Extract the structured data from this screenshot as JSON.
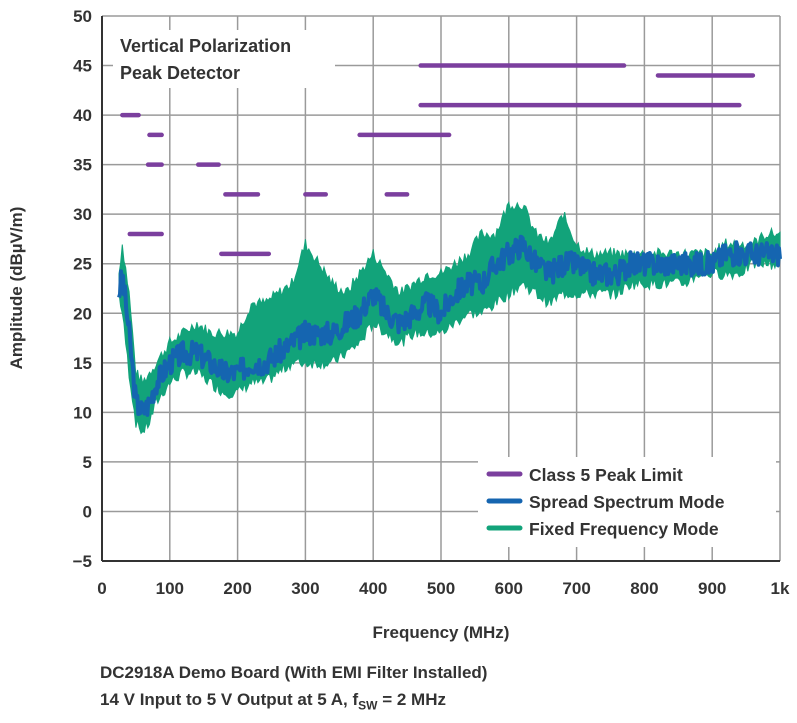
{
  "chart_data": {
    "type": "line",
    "xlabel": "Frequency (MHz)",
    "ylabel": "Amplitude (dBµV/m)",
    "xlim": [
      0,
      1000
    ],
    "ylim": [
      -5,
      50
    ],
    "x_ticks": [
      0,
      100,
      200,
      300,
      400,
      500,
      600,
      700,
      800,
      900,
      1000
    ],
    "x_tick_labels": [
      "0",
      "100",
      "200",
      "300",
      "400",
      "500",
      "600",
      "700",
      "800",
      "900",
      "1k"
    ],
    "y_ticks": [
      -5,
      0,
      5,
      10,
      15,
      20,
      25,
      30,
      35,
      40,
      45,
      50
    ],
    "y_tick_labels": [
      "−5",
      "0",
      "5",
      "10",
      "15",
      "20",
      "25",
      "30",
      "35",
      "40",
      "45",
      "50"
    ],
    "grid": true,
    "annotation": [
      "Vertical Polarization",
      "Peak Detector"
    ],
    "legend": {
      "placement": "bottom-right"
    },
    "series": [
      {
        "name": "Class 5 Peak Limit",
        "color": "#7b3f9e",
        "segments": [
          {
            "x": [
              30,
              54
            ],
            "y": 40
          },
          {
            "x": [
              41,
              88
            ],
            "y": 28
          },
          {
            "x": [
              70,
              88
            ],
            "y": 38
          },
          {
            "x": [
              68,
              88
            ],
            "y": 35
          },
          {
            "x": [
              142,
              172
            ],
            "y": 35
          },
          {
            "x": [
              176,
              246
            ],
            "y": 26
          },
          {
            "x": [
              182,
              230
            ],
            "y": 32
          },
          {
            "x": [
              300,
              330
            ],
            "y": 32
          },
          {
            "x": [
              380,
              512
            ],
            "y": 38
          },
          {
            "x": [
              420,
              450
            ],
            "y": 32
          },
          {
            "x": [
              470,
              770
            ],
            "y": 45
          },
          {
            "x": [
              470,
              940
            ],
            "y": 41
          },
          {
            "x": [
              820,
              960
            ],
            "y": 44
          }
        ]
      },
      {
        "name": "Spread Spectrum Mode",
        "color": "#1565b0",
        "x": [
          25,
          30,
          40,
          50,
          60,
          70,
          80,
          100,
          120,
          140,
          160,
          180,
          200,
          220,
          240,
          260,
          280,
          300,
          320,
          340,
          360,
          380,
          400,
          420,
          440,
          460,
          480,
          500,
          520,
          540,
          560,
          580,
          600,
          620,
          640,
          660,
          680,
          700,
          720,
          740,
          760,
          780,
          800,
          820,
          840,
          860,
          880,
          900,
          920,
          940,
          960,
          980,
          1000
        ],
        "y": [
          22,
          24,
          18,
          11,
          10,
          11,
          13,
          15,
          16,
          16,
          15,
          14,
          14,
          15,
          15,
          16,
          17,
          18,
          18,
          18,
          19,
          20,
          22,
          20,
          19,
          20,
          21,
          20,
          22,
          23,
          23,
          25,
          26,
          27,
          25,
          24,
          25,
          25,
          24,
          24,
          24,
          25,
          25,
          25,
          25,
          25,
          25,
          25,
          26,
          26,
          26,
          26,
          26
        ]
      },
      {
        "name": "Fixed Frequency Mode",
        "color": "#12a37a",
        "x": [
          25,
          30,
          40,
          50,
          60,
          70,
          80,
          100,
          120,
          140,
          160,
          180,
          200,
          220,
          240,
          260,
          280,
          300,
          320,
          340,
          360,
          380,
          400,
          420,
          440,
          460,
          480,
          500,
          520,
          540,
          560,
          580,
          600,
          620,
          640,
          660,
          680,
          700,
          720,
          740,
          760,
          780,
          800,
          820,
          840,
          860,
          880,
          900,
          920,
          940,
          960,
          980,
          1000
        ],
        "y_low": [
          22,
          20,
          14,
          9,
          8,
          9,
          11,
          13,
          14,
          14,
          13,
          12,
          12,
          13,
          13,
          14,
          15,
          15,
          15,
          15,
          16,
          17,
          19,
          18,
          17,
          18,
          18,
          18,
          19,
          20,
          20,
          21,
          22,
          23,
          22,
          21,
          22,
          22,
          22,
          22,
          22,
          23,
          23,
          23,
          23,
          23,
          24,
          24,
          24,
          24,
          25,
          25,
          25
        ],
        "y_high": [
          24,
          27,
          22,
          14,
          13,
          14,
          15,
          17,
          18,
          19,
          18,
          18,
          18,
          21,
          21,
          22,
          23,
          27,
          25,
          23,
          22,
          24,
          26,
          24,
          22,
          23,
          24,
          24,
          25,
          26,
          28,
          28,
          31,
          31,
          28,
          27,
          30,
          27,
          26,
          26,
          26,
          26,
          26,
          26,
          26,
          26,
          26,
          26,
          27,
          27,
          27,
          28,
          28
        ]
      }
    ]
  },
  "caption": {
    "line1": "DC2918A Demo Board (With EMI Filter Installed)",
    "line2_prefix": "14 V Input to 5 V Output at 5 A, f",
    "line2_sub": "SW",
    "line2_suffix": " = 2 MHz"
  }
}
